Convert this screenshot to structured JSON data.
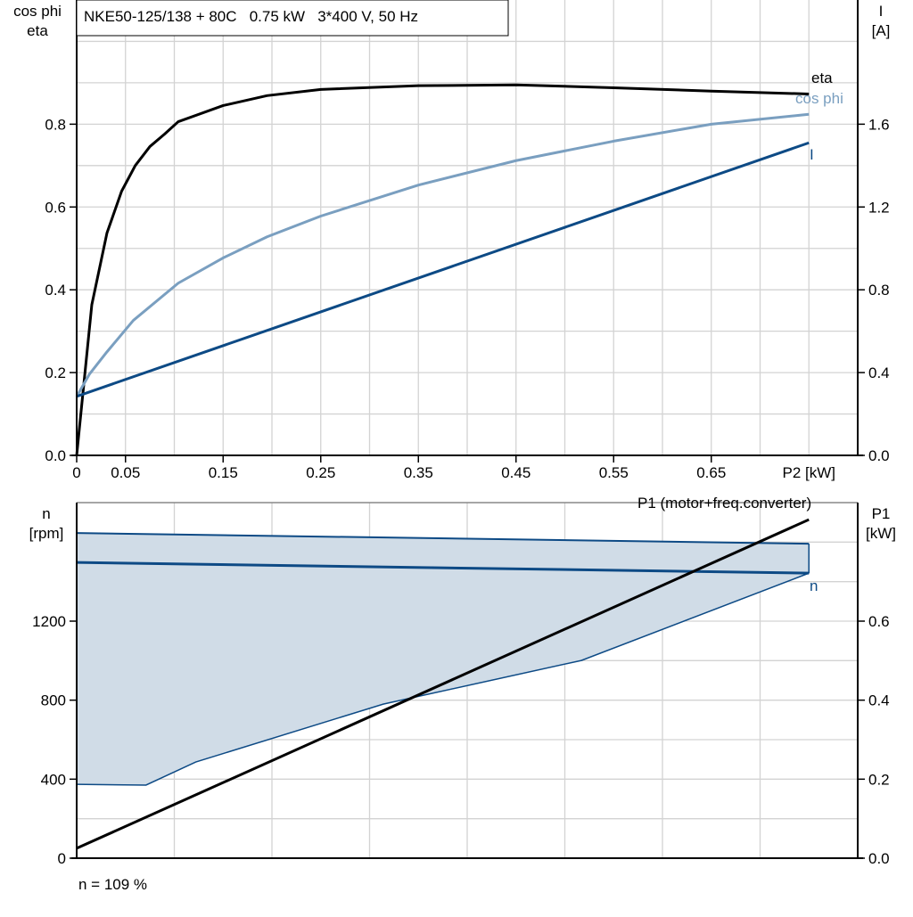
{
  "title": "NKE50-125/138 + 80C   0.75 kW   3*400 V, 50 Hz",
  "footer": "n = 109 %",
  "colors": {
    "eta": "#000000",
    "cos_phi": "#7a9fc0",
    "current": "#0d4a85",
    "speed": "#0d4a85",
    "band_fill": "#d0dce7",
    "p1": "#000000"
  },
  "chart_data": [
    {
      "type": "line",
      "ylabel_left": [
        "cos phi",
        "eta"
      ],
      "ylabel_right": [
        "I",
        "[A]"
      ],
      "xlabel": "P2 [kW]",
      "xlim": [
        0,
        0.8
      ],
      "ylim_left": [
        0,
        1.1
      ],
      "ylim_right": [
        0,
        2.2
      ],
      "grid": true,
      "x_ticks": [
        "0",
        "0.05",
        "0.15",
        "0.25",
        "0.35",
        "0.45",
        "0.55",
        "0.65"
      ],
      "x_tick_values": [
        0,
        0.05,
        0.15,
        0.25,
        0.35,
        0.45,
        0.55,
        0.65
      ],
      "y_ticks_left": [
        "0.0",
        "0.2",
        "0.4",
        "0.6",
        "0.8"
      ],
      "y_ticks_right": [
        "0.0",
        "0.4",
        "0.8",
        "1.2",
        "1.6"
      ],
      "series": [
        {
          "name": "eta",
          "axis": "left",
          "x": [
            0,
            0.0155,
            0.031,
            0.046,
            0.06,
            0.075,
            0.09,
            0.104,
            0.15,
            0.195,
            0.25,
            0.35,
            0.45,
            0.55,
            0.65,
            0.75
          ],
          "y": [
            0,
            0.364,
            0.537,
            0.638,
            0.7,
            0.746,
            0.776,
            0.806,
            0.845,
            0.869,
            0.884,
            0.893,
            0.895,
            0.888,
            0.88,
            0.873
          ]
        },
        {
          "name": "cos phi",
          "axis": "left",
          "x": [
            0,
            0.013,
            0.031,
            0.058,
            0.104,
            0.15,
            0.195,
            0.25,
            0.35,
            0.45,
            0.55,
            0.65,
            0.75
          ],
          "y": [
            0.142,
            0.196,
            0.25,
            0.326,
            0.416,
            0.477,
            0.528,
            0.578,
            0.653,
            0.712,
            0.759,
            0.8,
            0.824
          ]
        },
        {
          "name": "I",
          "axis": "right",
          "x": [
            0,
            0.75
          ],
          "y": [
            0.285,
            1.51
          ]
        }
      ]
    },
    {
      "type": "line",
      "ylabel_left": [
        "n",
        "[rpm]"
      ],
      "ylabel_right": [
        "P1",
        "[kW]"
      ],
      "xlim": [
        0,
        0.8
      ],
      "ylim_left": [
        0,
        1800
      ],
      "ylim_right": [
        0,
        0.9
      ],
      "grid": true,
      "y_ticks_left": [
        "0",
        "400",
        "800",
        "1200"
      ],
      "y_ticks_right": [
        "0.0",
        "0.2",
        "0.4",
        "0.6"
      ],
      "band": {
        "upper": {
          "x": [
            0,
            0.75
          ],
          "y": [
            1646,
            1592
          ]
        },
        "lower": {
          "x": [
            0,
            0.071,
            0.122,
            0.314,
            0.517,
            0.75
          ],
          "y": [
            374,
            370,
            487,
            780,
            1001,
            1443
          ]
        }
      },
      "series": [
        {
          "name": "n",
          "axis": "left",
          "x": [
            0,
            0.75
          ],
          "y": [
            1497,
            1443
          ]
        },
        {
          "name": "P1 (motor+freq.converter)",
          "axis": "right",
          "x": [
            0,
            0.75
          ],
          "y": [
            0.025,
            0.857
          ]
        }
      ]
    }
  ]
}
